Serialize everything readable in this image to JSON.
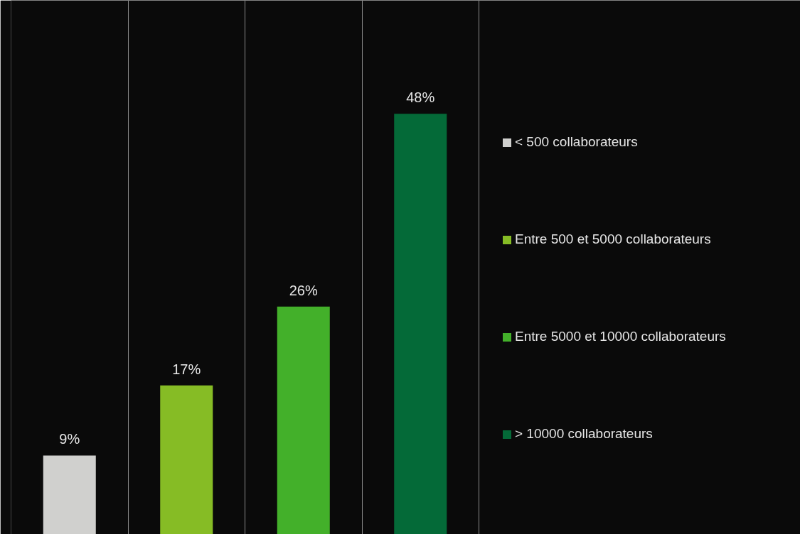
{
  "chart_data": {
    "type": "bar",
    "categories": [
      null,
      null,
      null,
      null
    ],
    "stacked": true,
    "series": [
      {
        "name": "< 500 collaborateurs",
        "color": "#d0d0ce",
        "values": [
          9,
          null,
          null,
          null
        ],
        "value_labels": [
          "9%",
          null,
          null,
          null
        ]
      },
      {
        "name": "Entre 500 et 5000 collaborateurs",
        "color": "#86bc25",
        "values": [
          null,
          17,
          null,
          null
        ],
        "value_labels": [
          null,
          "17%",
          null,
          null
        ]
      },
      {
        "name": "Entre 5000 et 10000 collaborateurs",
        "color": "#43b02a",
        "values": [
          null,
          null,
          26,
          null
        ],
        "value_labels": [
          null,
          null,
          "26%",
          null
        ]
      },
      {
        "name": "> 10000 collaborateurs",
        "color": "#046a38",
        "values": [
          null,
          null,
          null,
          48
        ],
        "value_labels": [
          null,
          null,
          null,
          "48%"
        ]
      }
    ],
    "grid": "x",
    "legend": "right",
    "tick_labels": false
  }
}
